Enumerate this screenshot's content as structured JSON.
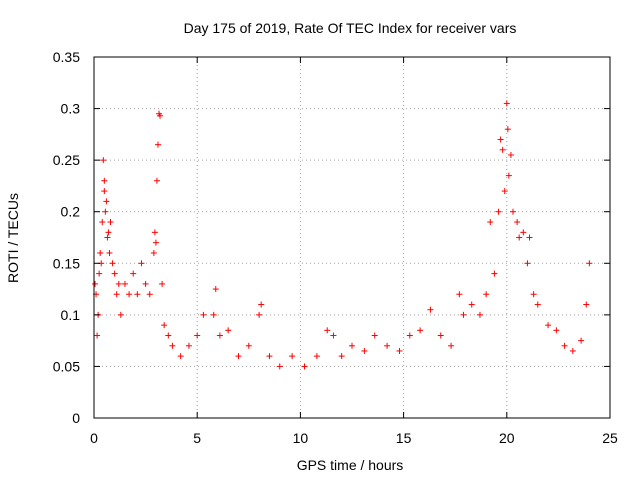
{
  "chart_data": {
    "type": "scatter",
    "title": "Day 175 of 2019, Rate Of TEC Index for receiver vars",
    "xlabel": "GPS time / hours",
    "ylabel": "ROTI / TECUs",
    "xlim": [
      0,
      25
    ],
    "ylim": [
      0,
      0.35
    ],
    "grid": true,
    "marker": "+",
    "color": "#ff0000",
    "x_ticks": [
      0,
      5,
      10,
      15,
      20,
      25
    ],
    "x_tick_labels": [
      "0",
      "5",
      "10",
      "15",
      "20",
      "25"
    ],
    "y_ticks": [
      0,
      0.05,
      0.1,
      0.15,
      0.2,
      0.25,
      0.3,
      0.35
    ],
    "y_tick_labels": [
      "0",
      "0.05",
      "0.1",
      "0.15",
      "0.2",
      "0.25",
      "0.3",
      "0.35"
    ],
    "series": [
      {
        "name": "ROTI",
        "points": [
          [
            0.05,
            0.13
          ],
          [
            0.1,
            0.12
          ],
          [
            0.15,
            0.08
          ],
          [
            0.2,
            0.1
          ],
          [
            0.25,
            0.14
          ],
          [
            0.3,
            0.16
          ],
          [
            0.35,
            0.15
          ],
          [
            0.4,
            0.19
          ],
          [
            0.45,
            0.25
          ],
          [
            0.5,
            0.22
          ],
          [
            0.5,
            0.23
          ],
          [
            0.55,
            0.2
          ],
          [
            0.6,
            0.21
          ],
          [
            0.65,
            0.175
          ],
          [
            0.7,
            0.18
          ],
          [
            0.75,
            0.16
          ],
          [
            0.8,
            0.19
          ],
          [
            0.9,
            0.15
          ],
          [
            1.0,
            0.14
          ],
          [
            1.1,
            0.12
          ],
          [
            1.2,
            0.13
          ],
          [
            1.3,
            0.1
          ],
          [
            1.5,
            0.13
          ],
          [
            1.7,
            0.12
          ],
          [
            1.9,
            0.14
          ],
          [
            2.1,
            0.12
          ],
          [
            2.3,
            0.15
          ],
          [
            2.5,
            0.13
          ],
          [
            2.7,
            0.12
          ],
          [
            2.9,
            0.16
          ],
          [
            2.95,
            0.18
          ],
          [
            3.0,
            0.17
          ],
          [
            3.05,
            0.23
          ],
          [
            3.1,
            0.265
          ],
          [
            3.15,
            0.295
          ],
          [
            3.2,
            0.293
          ],
          [
            3.3,
            0.13
          ],
          [
            3.4,
            0.09
          ],
          [
            3.6,
            0.08
          ],
          [
            3.8,
            0.07
          ],
          [
            4.2,
            0.06
          ],
          [
            4.6,
            0.07
          ],
          [
            5.0,
            0.08
          ],
          [
            5.3,
            0.1
          ],
          [
            5.8,
            0.1
          ],
          [
            5.9,
            0.125
          ],
          [
            6.1,
            0.08
          ],
          [
            6.5,
            0.085
          ],
          [
            7.0,
            0.06
          ],
          [
            7.5,
            0.07
          ],
          [
            8.0,
            0.1
          ],
          [
            8.1,
            0.11
          ],
          [
            8.5,
            0.06
          ],
          [
            9.0,
            0.05
          ],
          [
            9.6,
            0.06
          ],
          [
            10.2,
            0.05
          ],
          [
            10.8,
            0.06
          ],
          [
            11.3,
            0.085
          ],
          [
            11.6,
            0.08
          ],
          [
            12.0,
            0.06
          ],
          [
            12.5,
            0.07
          ],
          [
            13.1,
            0.065
          ],
          [
            13.6,
            0.08
          ],
          [
            14.2,
            0.07
          ],
          [
            14.8,
            0.065
          ],
          [
            15.3,
            0.08
          ],
          [
            15.8,
            0.085
          ],
          [
            16.3,
            0.105
          ],
          [
            16.8,
            0.08
          ],
          [
            17.3,
            0.07
          ],
          [
            17.7,
            0.12
          ],
          [
            17.9,
            0.1
          ],
          [
            18.3,
            0.11
          ],
          [
            18.7,
            0.1
          ],
          [
            19.0,
            0.12
          ],
          [
            19.2,
            0.19
          ],
          [
            19.4,
            0.14
          ],
          [
            19.6,
            0.2
          ],
          [
            19.7,
            0.27
          ],
          [
            19.8,
            0.26
          ],
          [
            19.9,
            0.22
          ],
          [
            20.0,
            0.305
          ],
          [
            20.05,
            0.28
          ],
          [
            20.1,
            0.235
          ],
          [
            20.2,
            0.255
          ],
          [
            20.3,
            0.2
          ],
          [
            20.5,
            0.19
          ],
          [
            20.6,
            0.175
          ],
          [
            20.8,
            0.18
          ],
          [
            21.0,
            0.15
          ],
          [
            21.1,
            0.175
          ],
          [
            21.3,
            0.12
          ],
          [
            21.5,
            0.11
          ],
          [
            22.0,
            0.09
          ],
          [
            22.4,
            0.085
          ],
          [
            22.8,
            0.07
          ],
          [
            23.2,
            0.065
          ],
          [
            23.6,
            0.075
          ],
          [
            23.85,
            0.11
          ],
          [
            24.0,
            0.15
          ]
        ]
      }
    ]
  }
}
